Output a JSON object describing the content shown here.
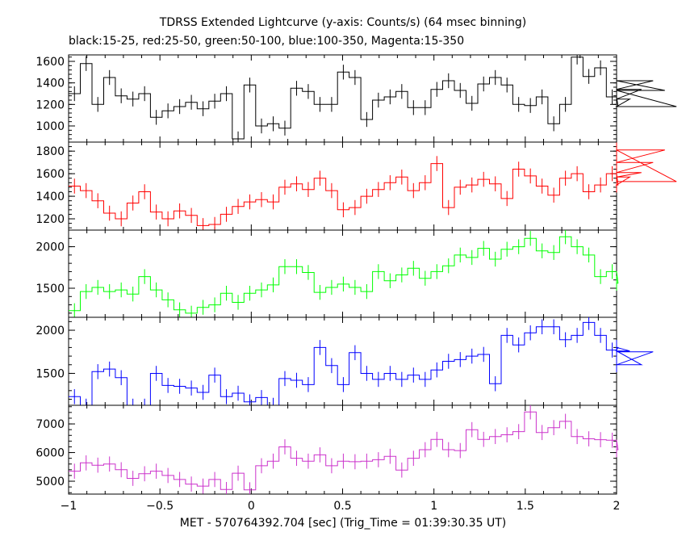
{
  "chart_data": {
    "type": "line",
    "title": "TDRSS Extended Lightcurve (y-axis: Counts/s) (64 msec binning)",
    "subtitle": "black:15-25, red:25-50, green:50-100, blue:100-350, Magenta:15-350",
    "xlabel": "MET - 570764392.704 [sec] (Trig_Time = 01:39:30.35 UT)",
    "xlim": [
      -1,
      2
    ],
    "x_ticks": [
      "-1",
      "-0.5",
      "0",
      "0.5",
      "1",
      "1.5",
      "2"
    ],
    "bin_width": 0.064,
    "x_start": -1.0,
    "grid": false,
    "panels": [
      {
        "name": "black:15-25",
        "color": "#000000",
        "ylim": [
          850,
          1660
        ],
        "y_ticks": [
          1000,
          1200,
          1400,
          1600
        ],
        "y_tick_labels": [
          "1000",
          "1200",
          "1400",
          "1600"
        ],
        "values": [
          1300,
          1580,
          1200,
          1450,
          1280,
          1250,
          1300,
          1080,
          1140,
          1180,
          1220,
          1160,
          1230,
          1300,
          880,
          1380,
          1000,
          1020,
          980,
          1350,
          1320,
          1200,
          1200,
          1500,
          1450,
          1060,
          1240,
          1270,
          1320,
          1170,
          1170,
          1340,
          1420,
          1330,
          1210,
          1390,
          1450,
          1380,
          1200,
          1190,
          1270,
          1020,
          1200,
          1640,
          1460,
          1540,
          1270,
          1180,
          1250,
          1340,
          1420,
          1330,
          1180
        ]
      },
      {
        "name": "red:25-50",
        "color": "#ff0000",
        "ylim": [
          1100,
          1880
        ],
        "y_ticks": [
          1200,
          1400,
          1600,
          1800
        ],
        "y_tick_labels": [
          "1200",
          "1400",
          "1600",
          "1800"
        ],
        "values": [
          1490,
          1450,
          1360,
          1250,
          1200,
          1340,
          1440,
          1260,
          1200,
          1270,
          1230,
          1140,
          1150,
          1240,
          1310,
          1350,
          1370,
          1350,
          1480,
          1510,
          1460,
          1560,
          1450,
          1280,
          1300,
          1400,
          1460,
          1520,
          1570,
          1450,
          1520,
          1690,
          1300,
          1480,
          1500,
          1550,
          1510,
          1380,
          1640,
          1580,
          1490,
          1410,
          1560,
          1600,
          1440,
          1500,
          1600,
          1500,
          1570,
          1610,
          1700,
          1810,
          1530
        ]
      },
      {
        "name": "green:50-100",
        "color": "#00ff00",
        "ylim": [
          1150,
          2200
        ],
        "y_ticks": [
          1500,
          2000
        ],
        "y_tick_labels": [
          "1500",
          "2000"
        ],
        "values": [
          1230,
          1460,
          1510,
          1460,
          1480,
          1430,
          1640,
          1480,
          1360,
          1240,
          1200,
          1270,
          1300,
          1440,
          1330,
          1440,
          1480,
          1540,
          1760,
          1760,
          1690,
          1450,
          1510,
          1550,
          1510,
          1460,
          1700,
          1590,
          1660,
          1740,
          1620,
          1700,
          1770,
          1900,
          1870,
          1980,
          1850,
          1970,
          2000,
          2100,
          1950,
          1930,
          2120,
          2000,
          1900,
          1640,
          1700,
          1560
        ]
      },
      {
        "name": "blue:100-350",
        "color": "#0000ff",
        "ylim": [
          1130,
          2150
        ],
        "y_ticks": [
          1500,
          2000
        ],
        "y_tick_labels": [
          "1500",
          "2000"
        ],
        "values": [
          1230,
          1120,
          1520,
          1550,
          1450,
          1120,
          1120,
          1500,
          1360,
          1350,
          1330,
          1280,
          1480,
          1230,
          1270,
          1170,
          1220,
          1130,
          1440,
          1420,
          1370,
          1800,
          1590,
          1370,
          1740,
          1500,
          1430,
          1500,
          1430,
          1480,
          1430,
          1540,
          1640,
          1660,
          1700,
          1720,
          1380,
          1940,
          1830,
          1970,
          2040,
          2040,
          1890,
          1940,
          2090,
          1940,
          1770,
          1800,
          1760,
          1600,
          1750
        ]
      },
      {
        "name": "Magenta:15-350",
        "color": "#cc33cc",
        "ylim": [
          4550,
          7650
        ],
        "y_ticks": [
          5000,
          6000,
          7000
        ],
        "y_tick_labels": [
          "5000",
          "6000",
          "7000"
        ],
        "values": [
          5350,
          5640,
          5560,
          5600,
          5400,
          5100,
          5260,
          5350,
          5200,
          5060,
          4900,
          4830,
          5060,
          4710,
          5280,
          4700,
          5540,
          5700,
          6200,
          5800,
          5700,
          5920,
          5540,
          5700,
          5680,
          5700,
          5750,
          5870,
          5390,
          5800,
          6100,
          6460,
          6100,
          6070,
          6800,
          6460,
          6560,
          6620,
          6730,
          7420,
          6700,
          6870,
          7090,
          6560,
          6480,
          6450,
          6430,
          6100
        ]
      }
    ]
  }
}
